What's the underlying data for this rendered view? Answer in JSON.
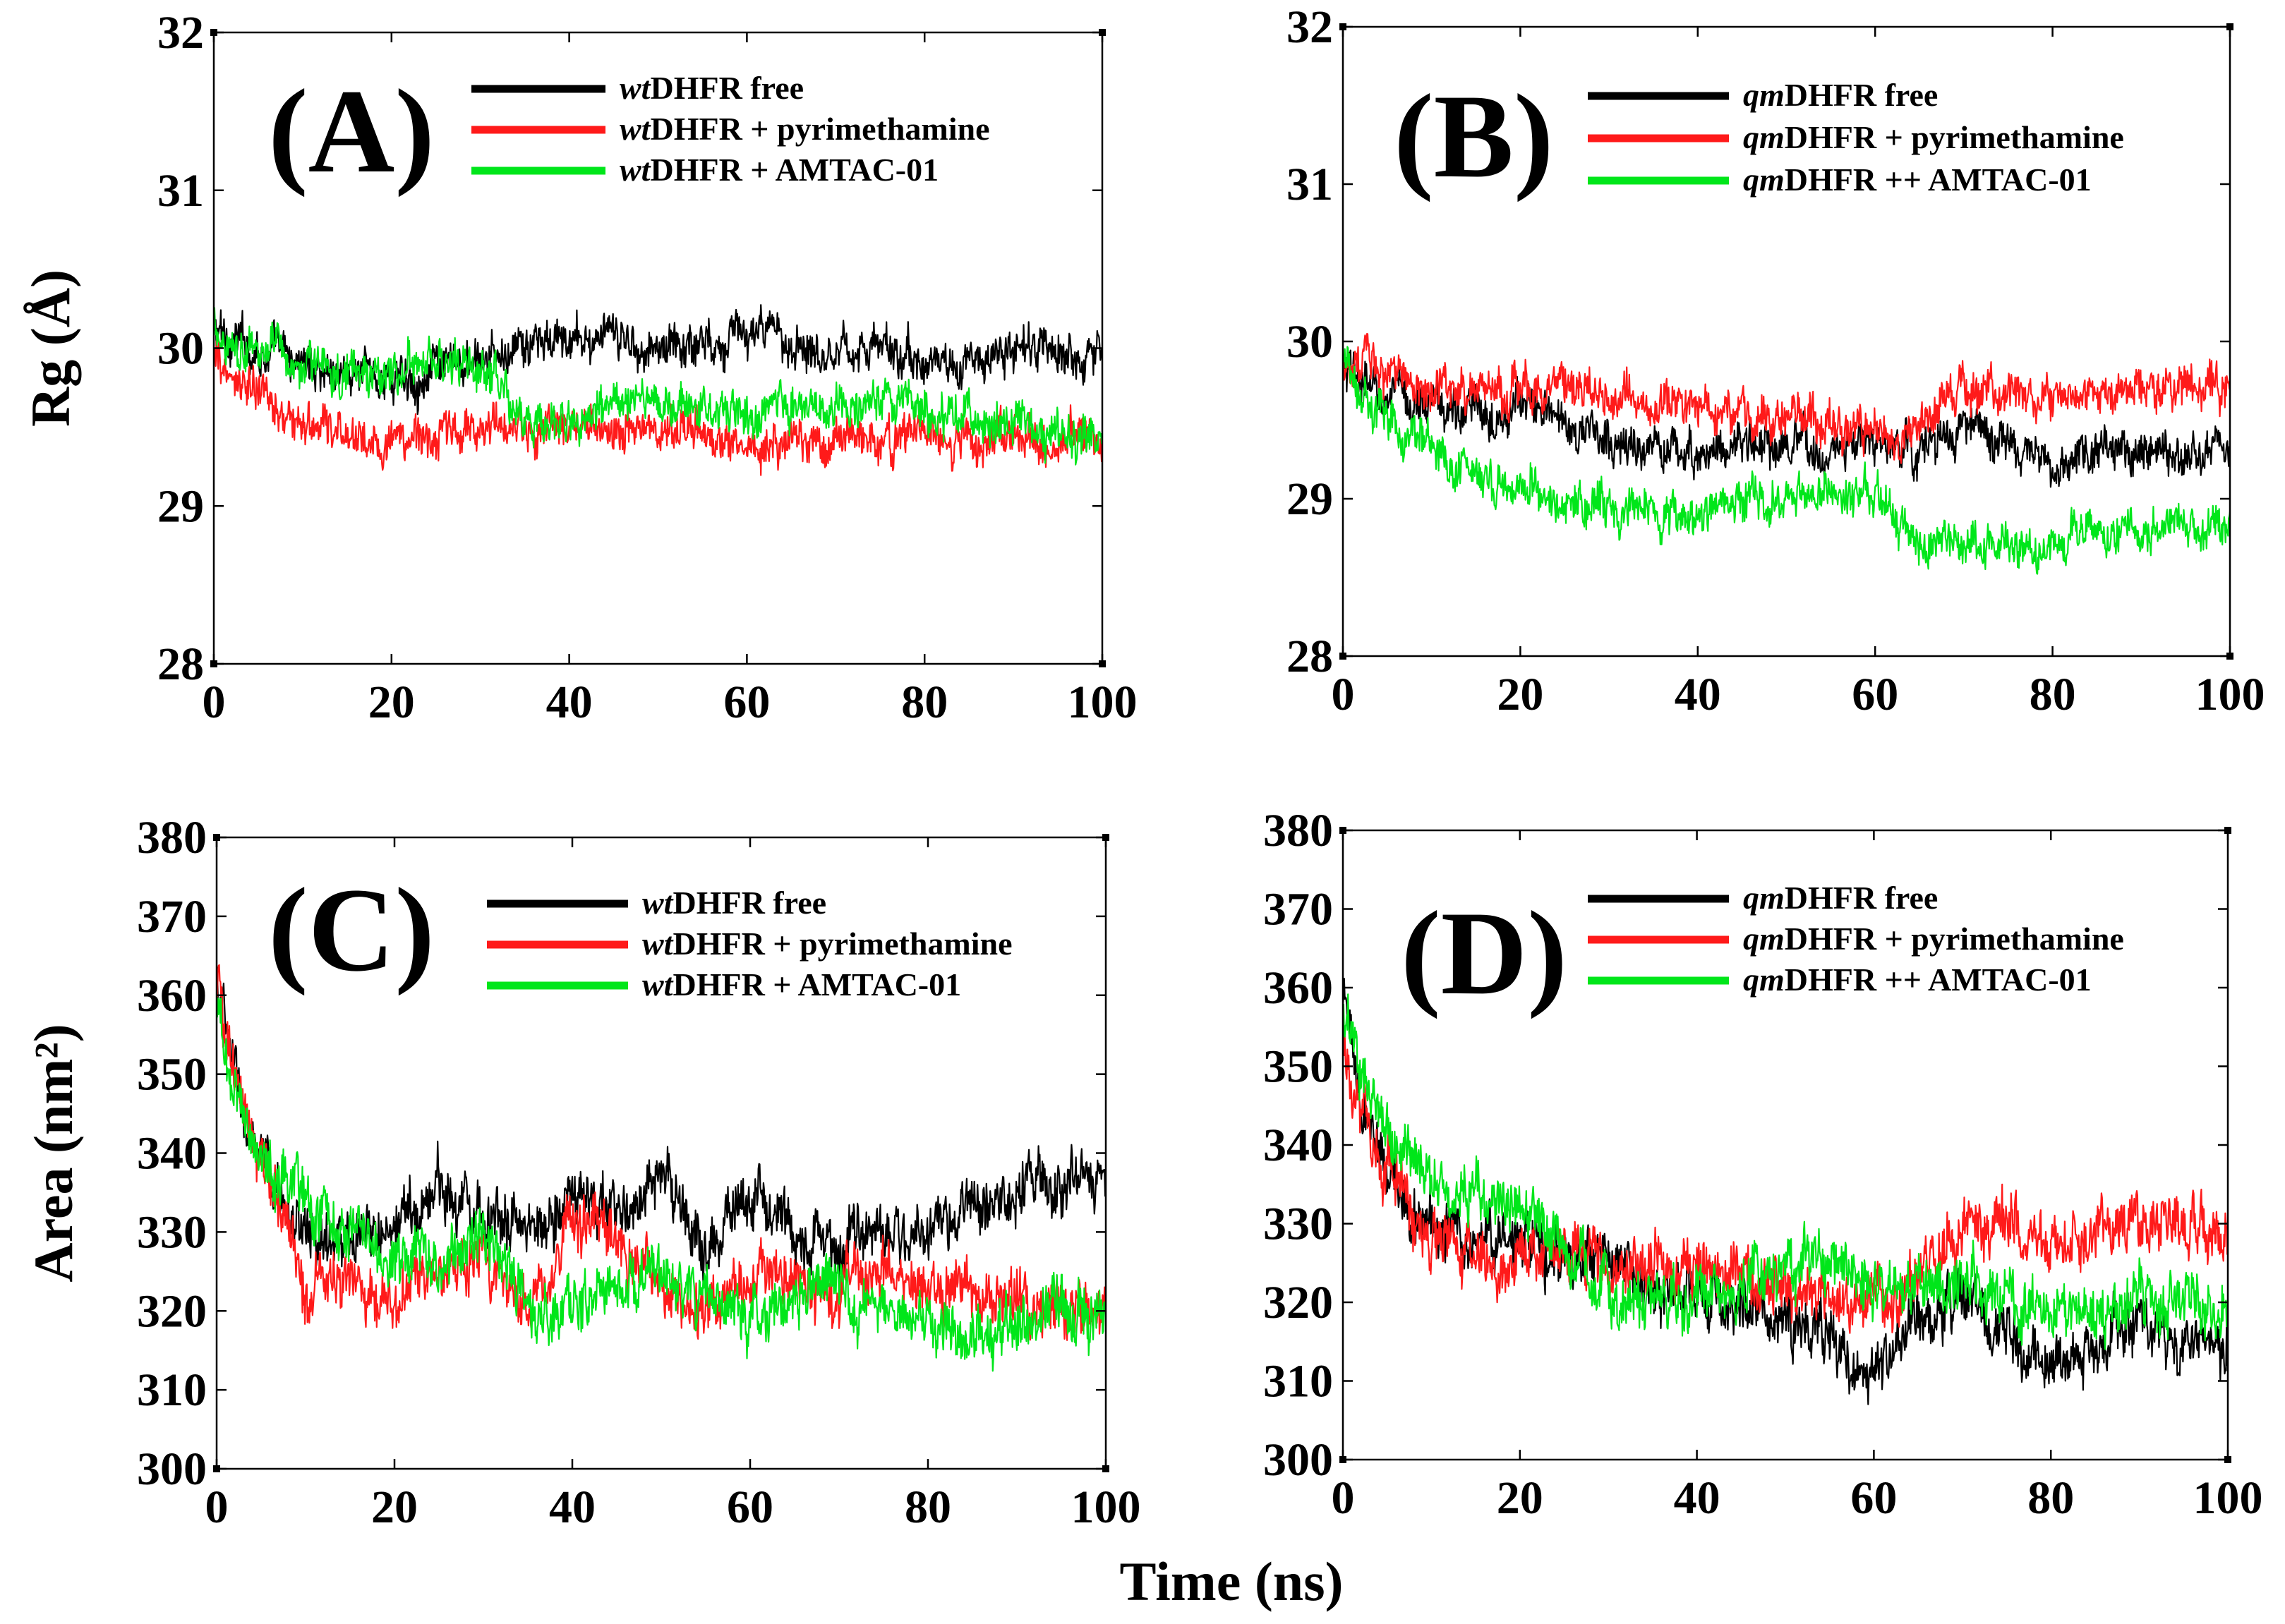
{
  "figure": {
    "shared_xlabel": "Time (ns)"
  },
  "colors": {
    "wt_free": "#000000",
    "pyrimethamine": "#ff1a1a",
    "amtac": "#00e61a"
  },
  "chart_data": [
    {
      "type": "line",
      "panel_label": "(A)",
      "ylabel": "Rg (Å)",
      "xlabel": "",
      "xlim": [
        0,
        100
      ],
      "ylim": [
        28,
        32
      ],
      "xticks": [
        0,
        20,
        40,
        60,
        80,
        100
      ],
      "yticks": [
        28,
        29,
        30,
        31,
        32
      ],
      "legend": {
        "position": "top-right"
      },
      "noise": 0.12,
      "series": [
        {
          "name_italic": "wt",
          "name_rest": "DHFR free",
          "color": "#000000",
          "x": [
            0,
            5,
            10,
            15,
            20,
            25,
            30,
            35,
            40,
            45,
            50,
            55,
            60,
            65,
            70,
            75,
            80,
            85,
            90,
            95,
            100
          ],
          "y": [
            30.1,
            30.0,
            29.9,
            29.85,
            29.8,
            29.85,
            29.9,
            30.0,
            30.05,
            30.05,
            30.0,
            30.05,
            30.1,
            30.05,
            30.0,
            30.0,
            29.9,
            29.9,
            30.0,
            29.95,
            30.0
          ]
        },
        {
          "name_italic": "wt",
          "name_rest": "DHFR + pyrimethamine",
          "color": "#ff1a1a",
          "x": [
            0,
            5,
            10,
            15,
            20,
            25,
            30,
            35,
            40,
            45,
            50,
            55,
            60,
            65,
            70,
            75,
            80,
            85,
            90,
            95,
            100
          ],
          "y": [
            29.9,
            29.7,
            29.5,
            29.45,
            29.4,
            29.45,
            29.5,
            29.45,
            29.5,
            29.5,
            29.5,
            29.45,
            29.4,
            29.45,
            29.45,
            29.4,
            29.45,
            29.4,
            29.45,
            29.4,
            29.45
          ]
        },
        {
          "name_italic": "wt",
          "name_rest": "DHFR + AMTAC-01",
          "color": "#00e61a",
          "x": [
            0,
            5,
            10,
            15,
            20,
            25,
            30,
            35,
            40,
            45,
            50,
            55,
            60,
            65,
            70,
            75,
            80,
            85,
            90,
            95,
            100
          ],
          "y": [
            30.1,
            30.0,
            29.9,
            29.85,
            29.85,
            29.9,
            29.85,
            29.55,
            29.55,
            29.6,
            29.65,
            29.6,
            29.6,
            29.65,
            29.6,
            29.6,
            29.6,
            29.55,
            29.5,
            29.45,
            29.4
          ]
        }
      ]
    },
    {
      "type": "line",
      "panel_label": "(B)",
      "ylabel": "",
      "xlabel": "",
      "xlim": [
        0,
        100
      ],
      "ylim": [
        28,
        32
      ],
      "xticks": [
        0,
        20,
        40,
        60,
        80,
        100
      ],
      "yticks": [
        28,
        29,
        30,
        31,
        32
      ],
      "legend": {
        "position": "top-right"
      },
      "noise": 0.12,
      "series": [
        {
          "name_italic": "qm",
          "name_rest": "DHFR free",
          "color": "#000000",
          "x": [
            0,
            5,
            10,
            15,
            20,
            25,
            30,
            35,
            40,
            45,
            50,
            55,
            60,
            65,
            70,
            75,
            80,
            85,
            90,
            95,
            100
          ],
          "y": [
            29.8,
            29.65,
            29.6,
            29.55,
            29.6,
            29.5,
            29.35,
            29.3,
            29.3,
            29.35,
            29.3,
            29.3,
            29.35,
            29.3,
            29.45,
            29.35,
            29.15,
            29.3,
            29.35,
            29.3,
            29.3
          ]
        },
        {
          "name_italic": "qm",
          "name_rest": "DHFR + pyrimethamine",
          "color": "#ff1a1a",
          "x": [
            0,
            5,
            10,
            15,
            20,
            25,
            30,
            35,
            40,
            45,
            50,
            55,
            60,
            65,
            70,
            75,
            80,
            85,
            90,
            95,
            100
          ],
          "y": [
            29.9,
            29.8,
            29.7,
            29.7,
            29.7,
            29.7,
            29.65,
            29.6,
            29.6,
            29.55,
            29.5,
            29.5,
            29.45,
            29.45,
            29.75,
            29.7,
            29.6,
            29.65,
            29.7,
            29.7,
            29.7
          ]
        },
        {
          "name_italic": "qm",
          "name_rest": "DHFR ++ AMTAC-01",
          "color": "#00e61a",
          "x": [
            0,
            5,
            10,
            15,
            20,
            25,
            30,
            35,
            40,
            45,
            50,
            55,
            60,
            65,
            70,
            75,
            80,
            85,
            90,
            95,
            100
          ],
          "y": [
            29.9,
            29.5,
            29.3,
            29.1,
            29.1,
            29.0,
            28.9,
            28.85,
            28.9,
            29.0,
            29.0,
            29.05,
            29.0,
            28.7,
            28.75,
            28.75,
            28.7,
            28.8,
            28.8,
            28.8,
            28.85
          ]
        }
      ]
    },
    {
      "type": "line",
      "panel_label": "(C)",
      "ylabel": "Area (nm²)",
      "xlabel": "",
      "xlim": [
        0,
        100
      ],
      "ylim": [
        300,
        380
      ],
      "xticks": [
        0,
        20,
        40,
        60,
        80,
        100
      ],
      "yticks": [
        300,
        310,
        320,
        330,
        340,
        350,
        360,
        370,
        380
      ],
      "legend": {
        "position": "top-right"
      },
      "noise": 3.2,
      "series": [
        {
          "name_italic": "wt",
          "name_rest": "DHFR free",
          "color": "#000000",
          "x": [
            0,
            2,
            4,
            6,
            8,
            10,
            15,
            20,
            25,
            30,
            35,
            40,
            45,
            50,
            55,
            60,
            65,
            70,
            75,
            80,
            85,
            90,
            95,
            100
          ],
          "y": [
            362,
            350,
            340,
            336,
            333,
            330,
            328,
            330,
            336,
            333,
            330,
            335,
            332,
            336,
            328,
            335,
            330,
            328,
            330,
            330,
            333,
            335,
            336,
            338
          ]
        },
        {
          "name_italic": "wt",
          "name_rest": "DHFR + pyrimethamine",
          "color": "#ff1a1a",
          "x": [
            0,
            2,
            4,
            6,
            8,
            10,
            15,
            20,
            25,
            30,
            35,
            40,
            45,
            50,
            55,
            60,
            65,
            70,
            75,
            80,
            85,
            90,
            95,
            100
          ],
          "y": [
            362,
            350,
            340,
            338,
            330,
            322,
            325,
            322,
            325,
            327,
            320,
            330,
            330,
            322,
            320,
            325,
            325,
            322,
            325,
            322,
            322,
            322,
            320,
            322
          ]
        },
        {
          "name_italic": "wt",
          "name_rest": "DHFR + AMTAC-01",
          "color": "#00e61a",
          "x": [
            0,
            2,
            4,
            6,
            8,
            10,
            15,
            20,
            25,
            30,
            35,
            40,
            45,
            50,
            55,
            60,
            65,
            70,
            75,
            80,
            85,
            90,
            95,
            100
          ],
          "y": [
            358,
            348,
            342,
            338,
            336,
            335,
            330,
            327,
            325,
            330,
            320,
            320,
            323,
            325,
            322,
            320,
            323,
            322,
            322,
            318,
            316,
            318,
            320,
            320
          ]
        }
      ]
    },
    {
      "type": "line",
      "panel_label": "(D)",
      "ylabel": "",
      "xlabel": "",
      "xlim": [
        0,
        100
      ],
      "ylim": [
        300,
        380
      ],
      "xticks": [
        0,
        20,
        40,
        60,
        80,
        100
      ],
      "yticks": [
        300,
        310,
        320,
        330,
        340,
        350,
        360,
        370,
        380
      ],
      "legend": {
        "position": "top-right"
      },
      "noise": 3.2,
      "series": [
        {
          "name_italic": "qm",
          "name_rest": "DHFR free",
          "color": "#000000",
          "x": [
            0,
            2,
            4,
            6,
            8,
            10,
            15,
            20,
            25,
            30,
            35,
            40,
            45,
            50,
            55,
            60,
            65,
            70,
            75,
            80,
            85,
            90,
            95,
            100
          ],
          "y": [
            358,
            345,
            338,
            335,
            332,
            330,
            328,
            328,
            325,
            325,
            322,
            320,
            320,
            318,
            315,
            312,
            318,
            320,
            315,
            312,
            315,
            318,
            315,
            315
          ]
        },
        {
          "name_italic": "qm",
          "name_rest": "DHFR + pyrimethamine",
          "color": "#ff1a1a",
          "x": [
            0,
            2,
            4,
            6,
            8,
            10,
            15,
            20,
            25,
            30,
            35,
            40,
            45,
            50,
            55,
            60,
            65,
            70,
            75,
            80,
            85,
            90,
            95,
            100
          ],
          "y": [
            355,
            345,
            338,
            335,
            330,
            328,
            326,
            325,
            328,
            325,
            325,
            325,
            324,
            322,
            320,
            320,
            322,
            330,
            330,
            326,
            328,
            330,
            330,
            328
          ]
        },
        {
          "name_italic": "qm",
          "name_rest": "DHFR ++ AMTAC-01",
          "color": "#00e61a",
          "x": [
            0,
            2,
            4,
            6,
            8,
            10,
            15,
            20,
            25,
            30,
            35,
            40,
            45,
            50,
            55,
            60,
            65,
            70,
            75,
            80,
            85,
            90,
            95,
            100
          ],
          "y": [
            357,
            350,
            345,
            340,
            338,
            336,
            334,
            332,
            328,
            320,
            320,
            320,
            322,
            325,
            325,
            322,
            322,
            322,
            320,
            320,
            318,
            320,
            320,
            318
          ]
        }
      ]
    }
  ]
}
